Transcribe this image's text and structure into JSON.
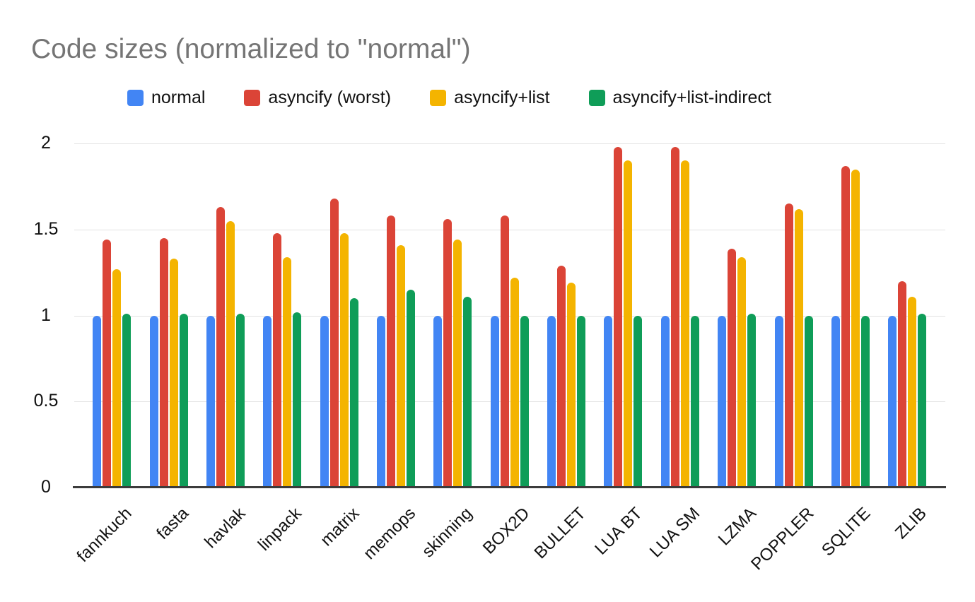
{
  "title": "Code sizes (normalized to \"normal\")",
  "chart_data": {
    "type": "bar",
    "title": "Code sizes (normalized to \"normal\")",
    "categories": [
      "fannkuch",
      "fasta",
      "havlak",
      "linpack",
      "matrix",
      "memops",
      "skinning",
      "BOX2D",
      "BULLET",
      "LUA BT",
      "LUA SM",
      "LZMA",
      "POPPLER",
      "SQLITE",
      "ZLIB"
    ],
    "series": [
      {
        "name": "normal",
        "color": "#4285F4",
        "values": [
          1.0,
          1.0,
          1.0,
          1.0,
          1.0,
          1.0,
          1.0,
          1.0,
          1.0,
          1.0,
          1.0,
          1.0,
          1.0,
          1.0,
          1.0
        ]
      },
      {
        "name": "asyncify (worst)",
        "color": "#DB4437",
        "values": [
          1.44,
          1.45,
          1.63,
          1.48,
          1.68,
          1.58,
          1.56,
          1.58,
          1.29,
          1.98,
          1.98,
          1.39,
          1.65,
          1.87,
          1.2
        ]
      },
      {
        "name": "asyncify+list",
        "color": "#F4B400",
        "values": [
          1.27,
          1.33,
          1.55,
          1.34,
          1.48,
          1.41,
          1.44,
          1.22,
          1.19,
          1.9,
          1.9,
          1.34,
          1.62,
          1.85,
          1.11
        ]
      },
      {
        "name": "asyncify+list-indirect",
        "color": "#0F9D58",
        "values": [
          1.01,
          1.01,
          1.01,
          1.02,
          1.1,
          1.15,
          1.11,
          1.0,
          1.0,
          1.0,
          1.0,
          1.01,
          1.0,
          1.0,
          1.01
        ]
      }
    ],
    "yticks": [
      0,
      0.5,
      1,
      1.5,
      2
    ],
    "ylim": [
      0,
      2.07
    ],
    "xlabel": "",
    "ylabel": "",
    "grid": true,
    "legend_position": "top"
  }
}
